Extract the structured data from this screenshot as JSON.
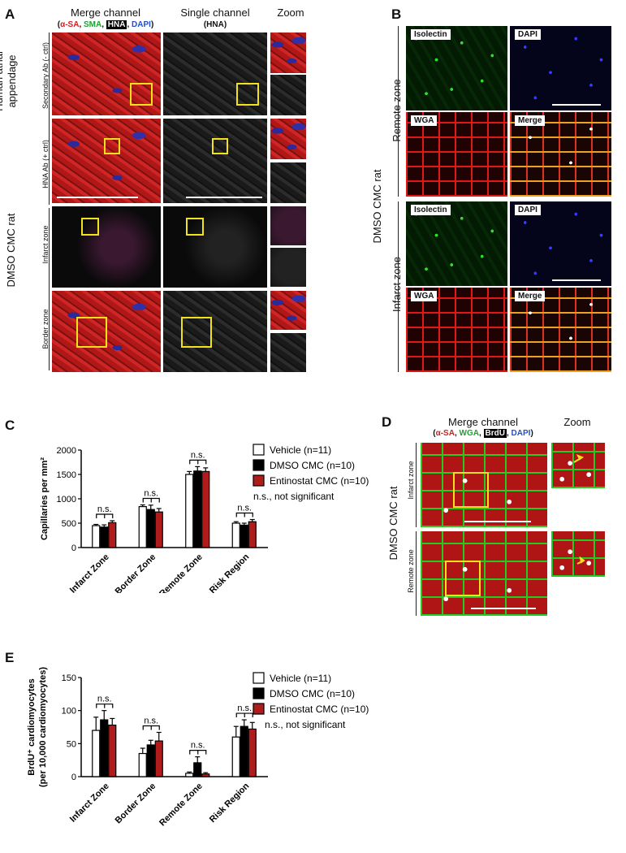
{
  "panelA": {
    "letter": "A",
    "headers": [
      "Merge channel",
      "Single channel",
      "Zoom"
    ],
    "legend": [
      {
        "text": "(",
        "color": "#111111"
      },
      {
        "text": "α-SA",
        "color": "#d42020"
      },
      {
        "text": ", ",
        "color": "#111111"
      },
      {
        "text": "SMA",
        "color": "#20a030"
      },
      {
        "text": ", ",
        "color": "#111111"
      },
      {
        "text": "HNA",
        "color": "#ffffff",
        "boxed": true
      },
      {
        "text": ", ",
        "color": "#111111"
      },
      {
        "text": "DAPI",
        "color": "#2050d0"
      },
      {
        "text": ")",
        "color": "#111111"
      }
    ],
    "single_sub": "(HNA)",
    "group_labels": [
      "Human atrial appendage",
      "DMSO CMC rat"
    ],
    "row_labels": [
      "Secondary Ab (- ctrl)",
      "HNA Ab (+ ctrl)",
      "Infarct zone",
      "Border zone"
    ]
  },
  "panelB": {
    "letter": "B",
    "group_label": "DMSO CMC rat",
    "zones": [
      "Remote zone",
      "Infarct zone"
    ],
    "tags": [
      "Isolectin",
      "DAPI",
      "WGA",
      "Merge"
    ],
    "tag_colors": [
      "#20a030",
      "#2050d0",
      "#d42020",
      "#111111"
    ]
  },
  "panelC": {
    "letter": "C",
    "chart_data": {
      "type": "bar",
      "categories": [
        "Infarct Zone",
        "Border Zone",
        "Remote Zone",
        "Risk Region"
      ],
      "ylabel": "Capillaries per mm²",
      "ylim": [
        0,
        2000
      ],
      "yticks": [
        0,
        500,
        1000,
        1500,
        2000
      ],
      "series": [
        {
          "name": "Vehicle (n=11)",
          "color": "#ffffff",
          "values": [
            450,
            840,
            1500,
            500
          ],
          "errors": [
            25,
            35,
            60,
            30
          ]
        },
        {
          "name": "DMSO CMC (n=10)",
          "color": "#000000",
          "values": [
            420,
            780,
            1570,
            460
          ],
          "errors": [
            45,
            90,
            90,
            40
          ]
        },
        {
          "name": "Entinostat CMC (n=10)",
          "color": "#b01c1c",
          "values": [
            510,
            730,
            1560,
            530
          ],
          "errors": [
            40,
            70,
            75,
            45
          ]
        }
      ],
      "annotations": [
        "n.s.",
        "n.s.",
        "n.s.",
        "n.s."
      ],
      "note": "n.s., not significant"
    }
  },
  "panelD": {
    "letter": "D",
    "header": "Merge channel",
    "legend": [
      {
        "text": "(",
        "color": "#111111"
      },
      {
        "text": "α-SA",
        "color": "#d42020"
      },
      {
        "text": ", ",
        "color": "#111111"
      },
      {
        "text": "WGA",
        "color": "#20a030"
      },
      {
        "text": ", ",
        "color": "#111111"
      },
      {
        "text": "BrdU",
        "color": "#ffffff",
        "boxed": true
      },
      {
        "text": ", ",
        "color": "#111111"
      },
      {
        "text": "DAPI",
        "color": "#2050d0"
      },
      {
        "text": ")",
        "color": "#111111"
      }
    ],
    "zoom_header": "Zoom",
    "group_label": "DMSO CMC rat",
    "row_labels": [
      "Infarct zone",
      "Remote zone"
    ]
  },
  "panelE": {
    "letter": "E",
    "chart_data": {
      "type": "bar",
      "categories": [
        "Infarct Zone",
        "Border Zone",
        "Remote Zone",
        "Risk Region"
      ],
      "ylabel_line1": "BrdU⁺ cardiomyocytes",
      "ylabel_line2": "(per 10,000 cardiomyocytes)",
      "ylim": [
        0,
        150
      ],
      "yticks": [
        0,
        50,
        100,
        150
      ],
      "series": [
        {
          "name": "Vehicle (n=11)",
          "color": "#ffffff",
          "values": [
            70,
            35,
            5,
            60
          ],
          "errors": [
            20,
            8,
            2,
            16
          ]
        },
        {
          "name": "DMSO CMC (n=10)",
          "color": "#000000",
          "values": [
            86,
            48,
            21,
            76
          ],
          "errors": [
            14,
            7,
            9,
            10
          ]
        },
        {
          "name": "Entinostat CMC (n=10)",
          "color": "#b01c1c",
          "values": [
            78,
            54,
            4,
            72
          ],
          "errors": [
            10,
            13,
            2,
            10
          ]
        }
      ],
      "annotations": [
        "n.s.",
        "n.s.",
        "n.s.",
        "n.s."
      ],
      "note": "n.s., not significant"
    }
  }
}
